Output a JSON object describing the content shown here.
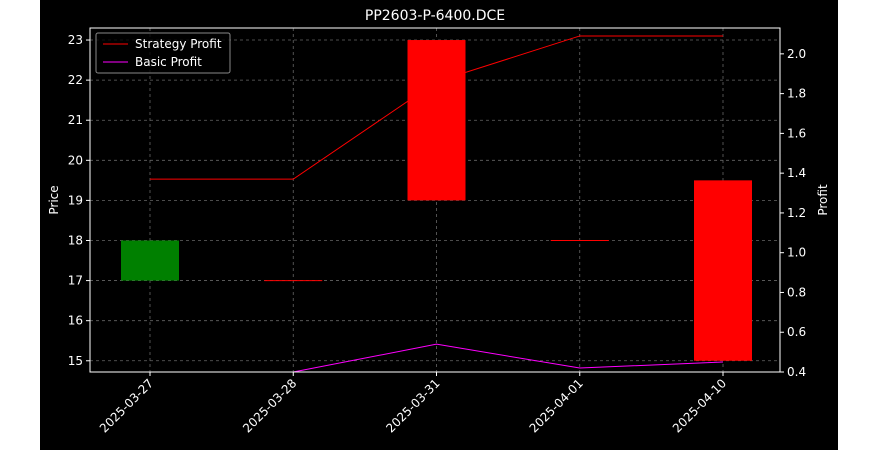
{
  "chart_data": {
    "type": "candlestick",
    "title": "PP2603-P-6400.DCE",
    "ylabel_left": "Price",
    "ylabel_right": "Profit",
    "categories": [
      "2025-03-27",
      "2025-03-28",
      "2025-03-31",
      "2025-04-01",
      "2025-04-10"
    ],
    "candles": [
      {
        "date": "2025-03-27",
        "open": 17.0,
        "close": 18.0,
        "color": "#008000"
      },
      {
        "date": "2025-03-28",
        "open": 17.0,
        "close": 17.0,
        "color": "#ff0000"
      },
      {
        "date": "2025-03-31",
        "open": 23.0,
        "close": 19.0,
        "color": "#ff0000"
      },
      {
        "date": "2025-04-01",
        "open": 18.0,
        "close": 18.0,
        "color": "#ff0000"
      },
      {
        "date": "2025-04-10",
        "open": 19.5,
        "close": 15.0,
        "color": "#ff0000"
      }
    ],
    "series": [
      {
        "name": "Strategy Profit",
        "axis": "right",
        "color": "#ff0000",
        "values": [
          1.37,
          1.37,
          1.86,
          2.09,
          2.09
        ]
      },
      {
        "name": "Basic Profit",
        "axis": "right",
        "color": "#ff00ff",
        "values": [
          0.4,
          0.4,
          0.54,
          0.42,
          0.45
        ]
      }
    ],
    "ylim_left": [
      14.72,
      23.3
    ],
    "ylim_right": [
      0.4,
      2.13
    ],
    "yticks_left": [
      "15",
      "16",
      "17",
      "18",
      "19",
      "20",
      "21",
      "22",
      "23"
    ],
    "yticks_right": [
      "0.4",
      "0.6",
      "0.8",
      "1.0",
      "1.2",
      "1.4",
      "1.6",
      "1.8",
      "2.0"
    ],
    "grid": true,
    "legend_position": "top-left",
    "background": "#000000"
  }
}
